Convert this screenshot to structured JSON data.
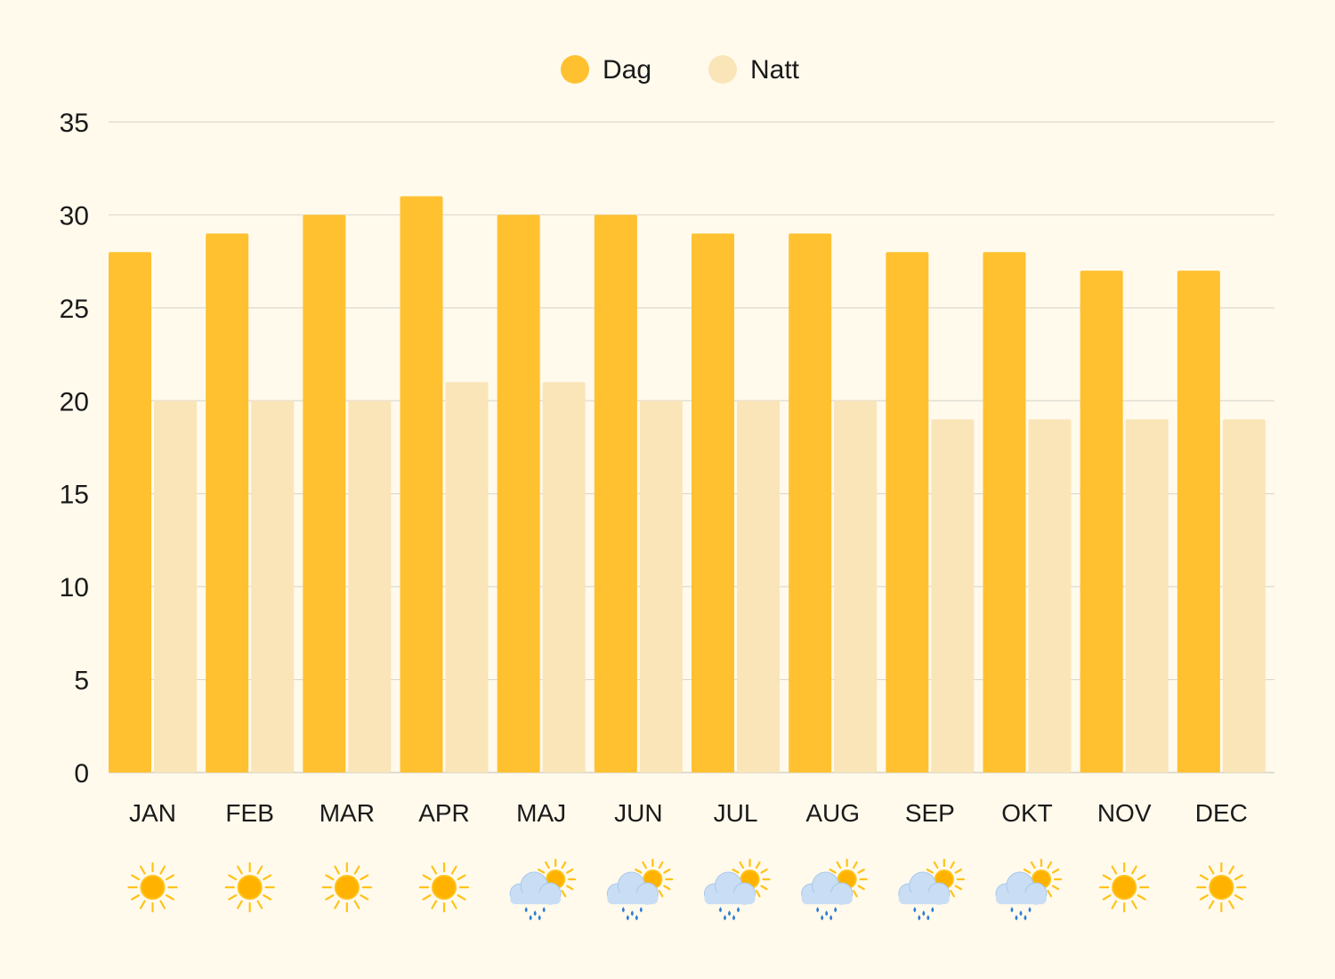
{
  "chart_data": {
    "type": "bar",
    "categories": [
      "JAN",
      "FEB",
      "MAR",
      "APR",
      "MAJ",
      "JUN",
      "JUL",
      "AUG",
      "SEP",
      "OKT",
      "NOV",
      "DEC"
    ],
    "series": [
      {
        "name": "Dag",
        "color": "#FFC130",
        "values": [
          28,
          29,
          30,
          31,
          30,
          30,
          29,
          29,
          28,
          28,
          27,
          27
        ]
      },
      {
        "name": "Natt",
        "color": "#FAE5B9",
        "values": [
          20,
          20,
          20,
          21,
          21,
          20,
          20,
          20,
          19,
          19,
          19,
          19
        ]
      }
    ],
    "ylim": [
      0,
      35
    ],
    "yticks": [
      0,
      5,
      10,
      15,
      20,
      25,
      30,
      35
    ],
    "grid": true,
    "legend": "top-center",
    "weather_icons": [
      "sun-icon",
      "sun-icon",
      "sun-icon",
      "sun-icon",
      "rain-sun-icon",
      "rain-sun-icon",
      "rain-sun-icon",
      "rain-sun-icon",
      "rain-sun-icon",
      "rain-sun-icon",
      "sun-icon",
      "sun-icon"
    ]
  }
}
